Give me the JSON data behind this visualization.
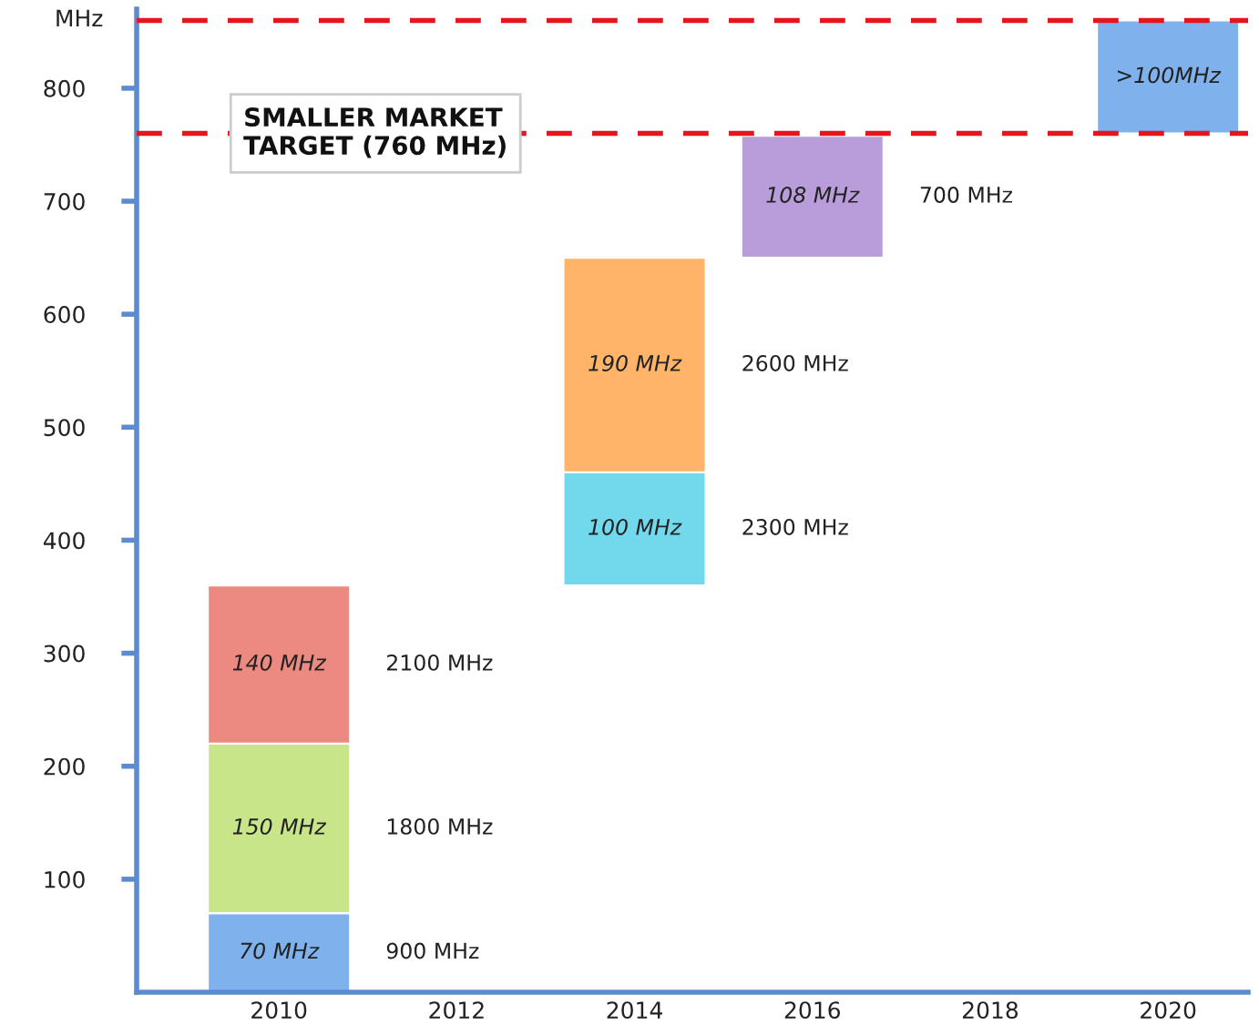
{
  "chart_data": {
    "type": "bar",
    "ylabel": "MHz",
    "categories": [
      "2010",
      "2012",
      "2014",
      "2016",
      "2018",
      "2020"
    ],
    "series": [
      {
        "name": "900 MHz",
        "color": "#7fb2ec",
        "base": [
          0,
          null,
          null,
          null,
          null,
          null
        ],
        "values": [
          70,
          null,
          null,
          null,
          null,
          null
        ],
        "value_labels": [
          "70 MHz",
          null,
          null,
          null,
          null,
          null
        ]
      },
      {
        "name": "1800 MHz",
        "color": "#c9e58a",
        "base": [
          70,
          null,
          null,
          null,
          null,
          null
        ],
        "values": [
          150,
          null,
          null,
          null,
          null,
          null
        ],
        "value_labels": [
          "150 MHz",
          null,
          null,
          null,
          null,
          null
        ]
      },
      {
        "name": "2100 MHz",
        "color": "#ec8a82",
        "base": [
          220,
          null,
          null,
          null,
          null,
          null
        ],
        "values": [
          140,
          null,
          null,
          null,
          null,
          null
        ],
        "value_labels": [
          "140 MHz",
          null,
          null,
          null,
          null,
          null
        ]
      },
      {
        "name": "2300 MHz",
        "color": "#72d8ec",
        "base": [
          null,
          null,
          360,
          null,
          null,
          null
        ],
        "values": [
          null,
          null,
          100,
          null,
          null,
          null
        ],
        "value_labels": [
          null,
          null,
          "100 MHz",
          null,
          null,
          null
        ]
      },
      {
        "name": "2600 MHz",
        "color": "#ffb469",
        "base": [
          null,
          null,
          460,
          null,
          null,
          null
        ],
        "values": [
          null,
          null,
          190,
          null,
          null,
          null
        ],
        "value_labels": [
          null,
          null,
          "190 MHz",
          null,
          null,
          null
        ]
      },
      {
        "name": "700 MHz",
        "color": "#b99ddb",
        "base": [
          null,
          null,
          null,
          650,
          null,
          null
        ],
        "values": [
          null,
          null,
          null,
          108,
          null,
          null
        ],
        "value_labels": [
          null,
          null,
          null,
          "108 MHz",
          null,
          null
        ]
      },
      {
        "color": "#7fb2ec",
        "base": [
          null,
          null,
          null,
          null,
          null,
          760
        ],
        "values": [
          null,
          null,
          null,
          null,
          null,
          100
        ],
        "value_labels": [
          null,
          null,
          null,
          null,
          null,
          ">100MHz"
        ]
      }
    ],
    "ylim": [
      0,
      870
    ],
    "yticks": [
      100,
      200,
      300,
      400,
      500,
      600,
      700,
      800
    ],
    "ref_lines": [
      {
        "axis": "y",
        "value": 760,
        "label": "SMALLER MARKET\nTARGET (760 MHz)",
        "color": "#e8141c",
        "line_style": "dashed"
      },
      {
        "axis": "y",
        "value": 860,
        "color": "#e8141c",
        "line_style": "dashed"
      }
    ],
    "grid": false,
    "legend": false
  }
}
